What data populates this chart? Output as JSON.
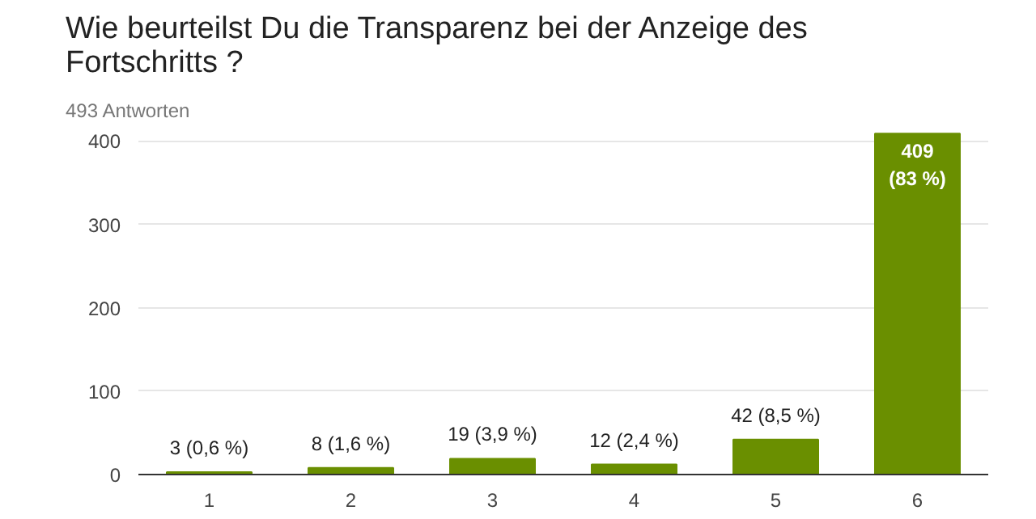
{
  "chart_data": {
    "type": "bar",
    "title": "Wie beurteilst Du die Transparenz bei der Anzeige des\nFortschritts ?",
    "subtitle": "493 Antworten",
    "categories": [
      "1",
      "2",
      "3",
      "4",
      "5",
      "6"
    ],
    "values": [
      3,
      8,
      19,
      12,
      42,
      409
    ],
    "value_labels": [
      "3 (0,6 %)",
      "8 (1,6 %)",
      "19 (3,9 %)",
      "12 (2,4 %)",
      "42 (8,5 %)",
      "409\n(83 %)"
    ],
    "color": "#6a8f00",
    "ylim": [
      0,
      413
    ],
    "yticks": [
      0,
      100,
      200,
      300,
      400
    ],
    "grid": "y"
  }
}
